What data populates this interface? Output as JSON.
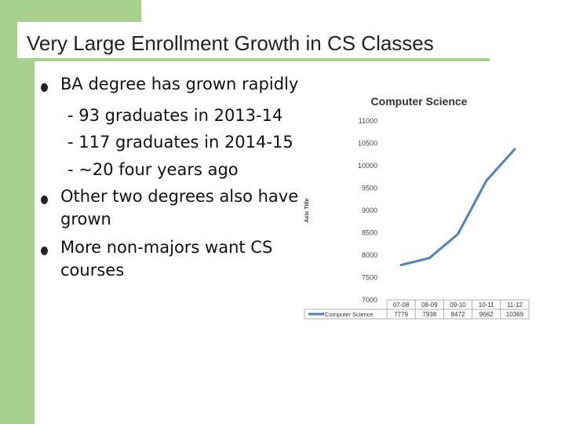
{
  "slide": {
    "title": "Very Large Enrollment Growth in CS Classes",
    "bullets": [
      "BA degree has grown rapidly",
      "- 93 graduates in 2013-14",
      "- 117 graduates in 2014-15",
      "- ~20 four years ago",
      "Other two degrees also have",
      "grown",
      "More non-majors want CS",
      "courses"
    ],
    "colors": {
      "accent_green": "#a9d18e",
      "series_blue": "#4f81bd"
    }
  },
  "chart_data": {
    "type": "line",
    "title": "Computer Science",
    "ylabel": "Axis Title",
    "categories": [
      "07-08",
      "08-09",
      "09-10",
      "10-11",
      "11-12"
    ],
    "y_ticks": [
      "11000",
      "10500",
      "10000",
      "9500",
      "9000",
      "8500",
      "8000",
      "7500",
      "7000"
    ],
    "ylim": [
      7000,
      11000
    ],
    "series": [
      {
        "name": "Computer Science",
        "values": [
          7779,
          7938,
          8472,
          9662,
          10369
        ],
        "labels": [
          "7779",
          "7938",
          "8472",
          "9662",
          "10369"
        ]
      }
    ],
    "legend": "bottom-table",
    "grid": false
  }
}
